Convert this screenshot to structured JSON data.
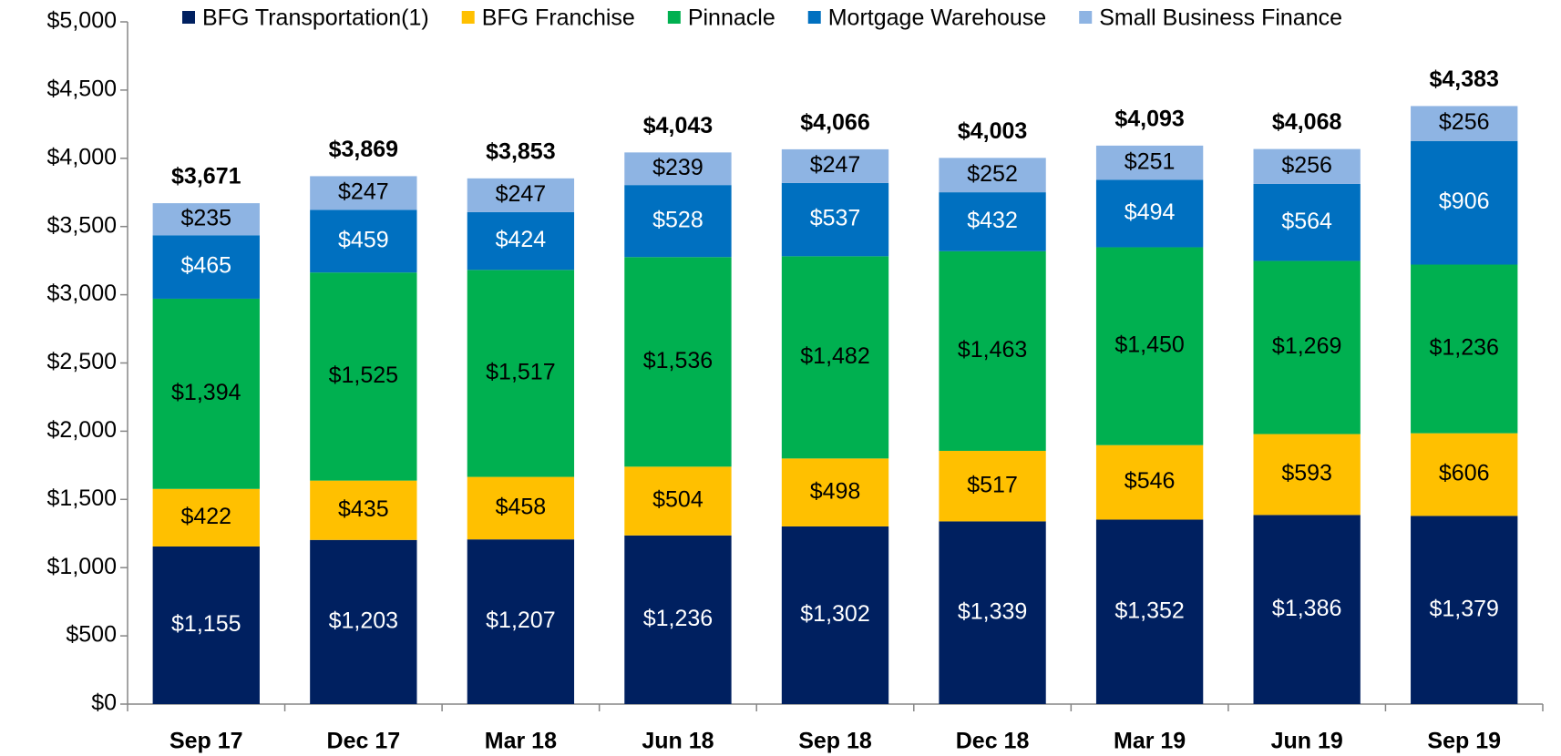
{
  "chart_data": {
    "type": "stacked_bar",
    "categories": [
      "Sep 17",
      "Dec 17",
      "Mar 18",
      "Jun 18",
      "Sep 18",
      "Dec 18",
      "Mar 19",
      "Jun 19",
      "Sep 19"
    ],
    "series": [
      {
        "name": "BFG Transportation(1)",
        "color": "#002060",
        "label_color": "#ffffff",
        "values": [
          1155,
          1203,
          1207,
          1236,
          1302,
          1339,
          1352,
          1386,
          1379
        ],
        "value_labels": [
          "$1,155",
          "$1,203",
          "$1,207",
          "$1,236",
          "$1,302",
          "$1,339",
          "$1,352",
          "$1,386",
          "$1,379"
        ]
      },
      {
        "name": "BFG Franchise",
        "color": "#ffc000",
        "label_color": "#000000",
        "values": [
          422,
          435,
          458,
          504,
          498,
          517,
          546,
          593,
          606
        ],
        "value_labels": [
          "$422",
          "$435",
          "$458",
          "$504",
          "$498",
          "$517",
          "$546",
          "$593",
          "$606"
        ]
      },
      {
        "name": "Pinnacle",
        "color": "#00b050",
        "label_color": "#000000",
        "values": [
          1394,
          1525,
          1517,
          1536,
          1482,
          1463,
          1450,
          1269,
          1236
        ],
        "value_labels": [
          "$1,394",
          "$1,525",
          "$1,517",
          "$1,536",
          "$1,482",
          "$1,463",
          "$1,450",
          "$1,269",
          "$1,236"
        ]
      },
      {
        "name": "Mortgage Warehouse",
        "color": "#0070c0",
        "label_color": "#ffffff",
        "values": [
          465,
          459,
          424,
          528,
          537,
          432,
          494,
          564,
          906
        ],
        "value_labels": [
          "$465",
          "$459",
          "$424",
          "$528",
          "$537",
          "$432",
          "$494",
          "$564",
          "$906"
        ]
      },
      {
        "name": "Small Business Finance",
        "color": "#8eb4e3",
        "label_color": "#000000",
        "values": [
          235,
          247,
          247,
          239,
          247,
          252,
          251,
          256,
          256
        ],
        "value_labels": [
          "$235",
          "$247",
          "$247",
          "$239",
          "$247",
          "$252",
          "$251",
          "$256",
          "$256"
        ]
      }
    ],
    "totals": [
      3671,
      3869,
      3853,
      4043,
      4066,
      4003,
      4093,
      4068,
      4383
    ],
    "total_labels": [
      "$3,671",
      "$3,869",
      "$3,853",
      "$4,043",
      "$4,066",
      "$4,003",
      "$4,093",
      "$4,068",
      "$4,383"
    ],
    "ylim": [
      0,
      5000
    ],
    "yticks": [
      {
        "value": 0,
        "label": "$0"
      },
      {
        "value": 500,
        "label": "$500"
      },
      {
        "value": 1000,
        "label": "$1,000"
      },
      {
        "value": 1500,
        "label": "$1,500"
      },
      {
        "value": 2000,
        "label": "$2,000"
      },
      {
        "value": 2500,
        "label": "$2,500"
      },
      {
        "value": 3000,
        "label": "$3,000"
      },
      {
        "value": 3500,
        "label": "$3,500"
      },
      {
        "value": 4000,
        "label": "$4,000"
      },
      {
        "value": 4500,
        "label": "$4,500"
      },
      {
        "value": 5000,
        "label": "$5,000"
      }
    ],
    "legend": "top"
  }
}
